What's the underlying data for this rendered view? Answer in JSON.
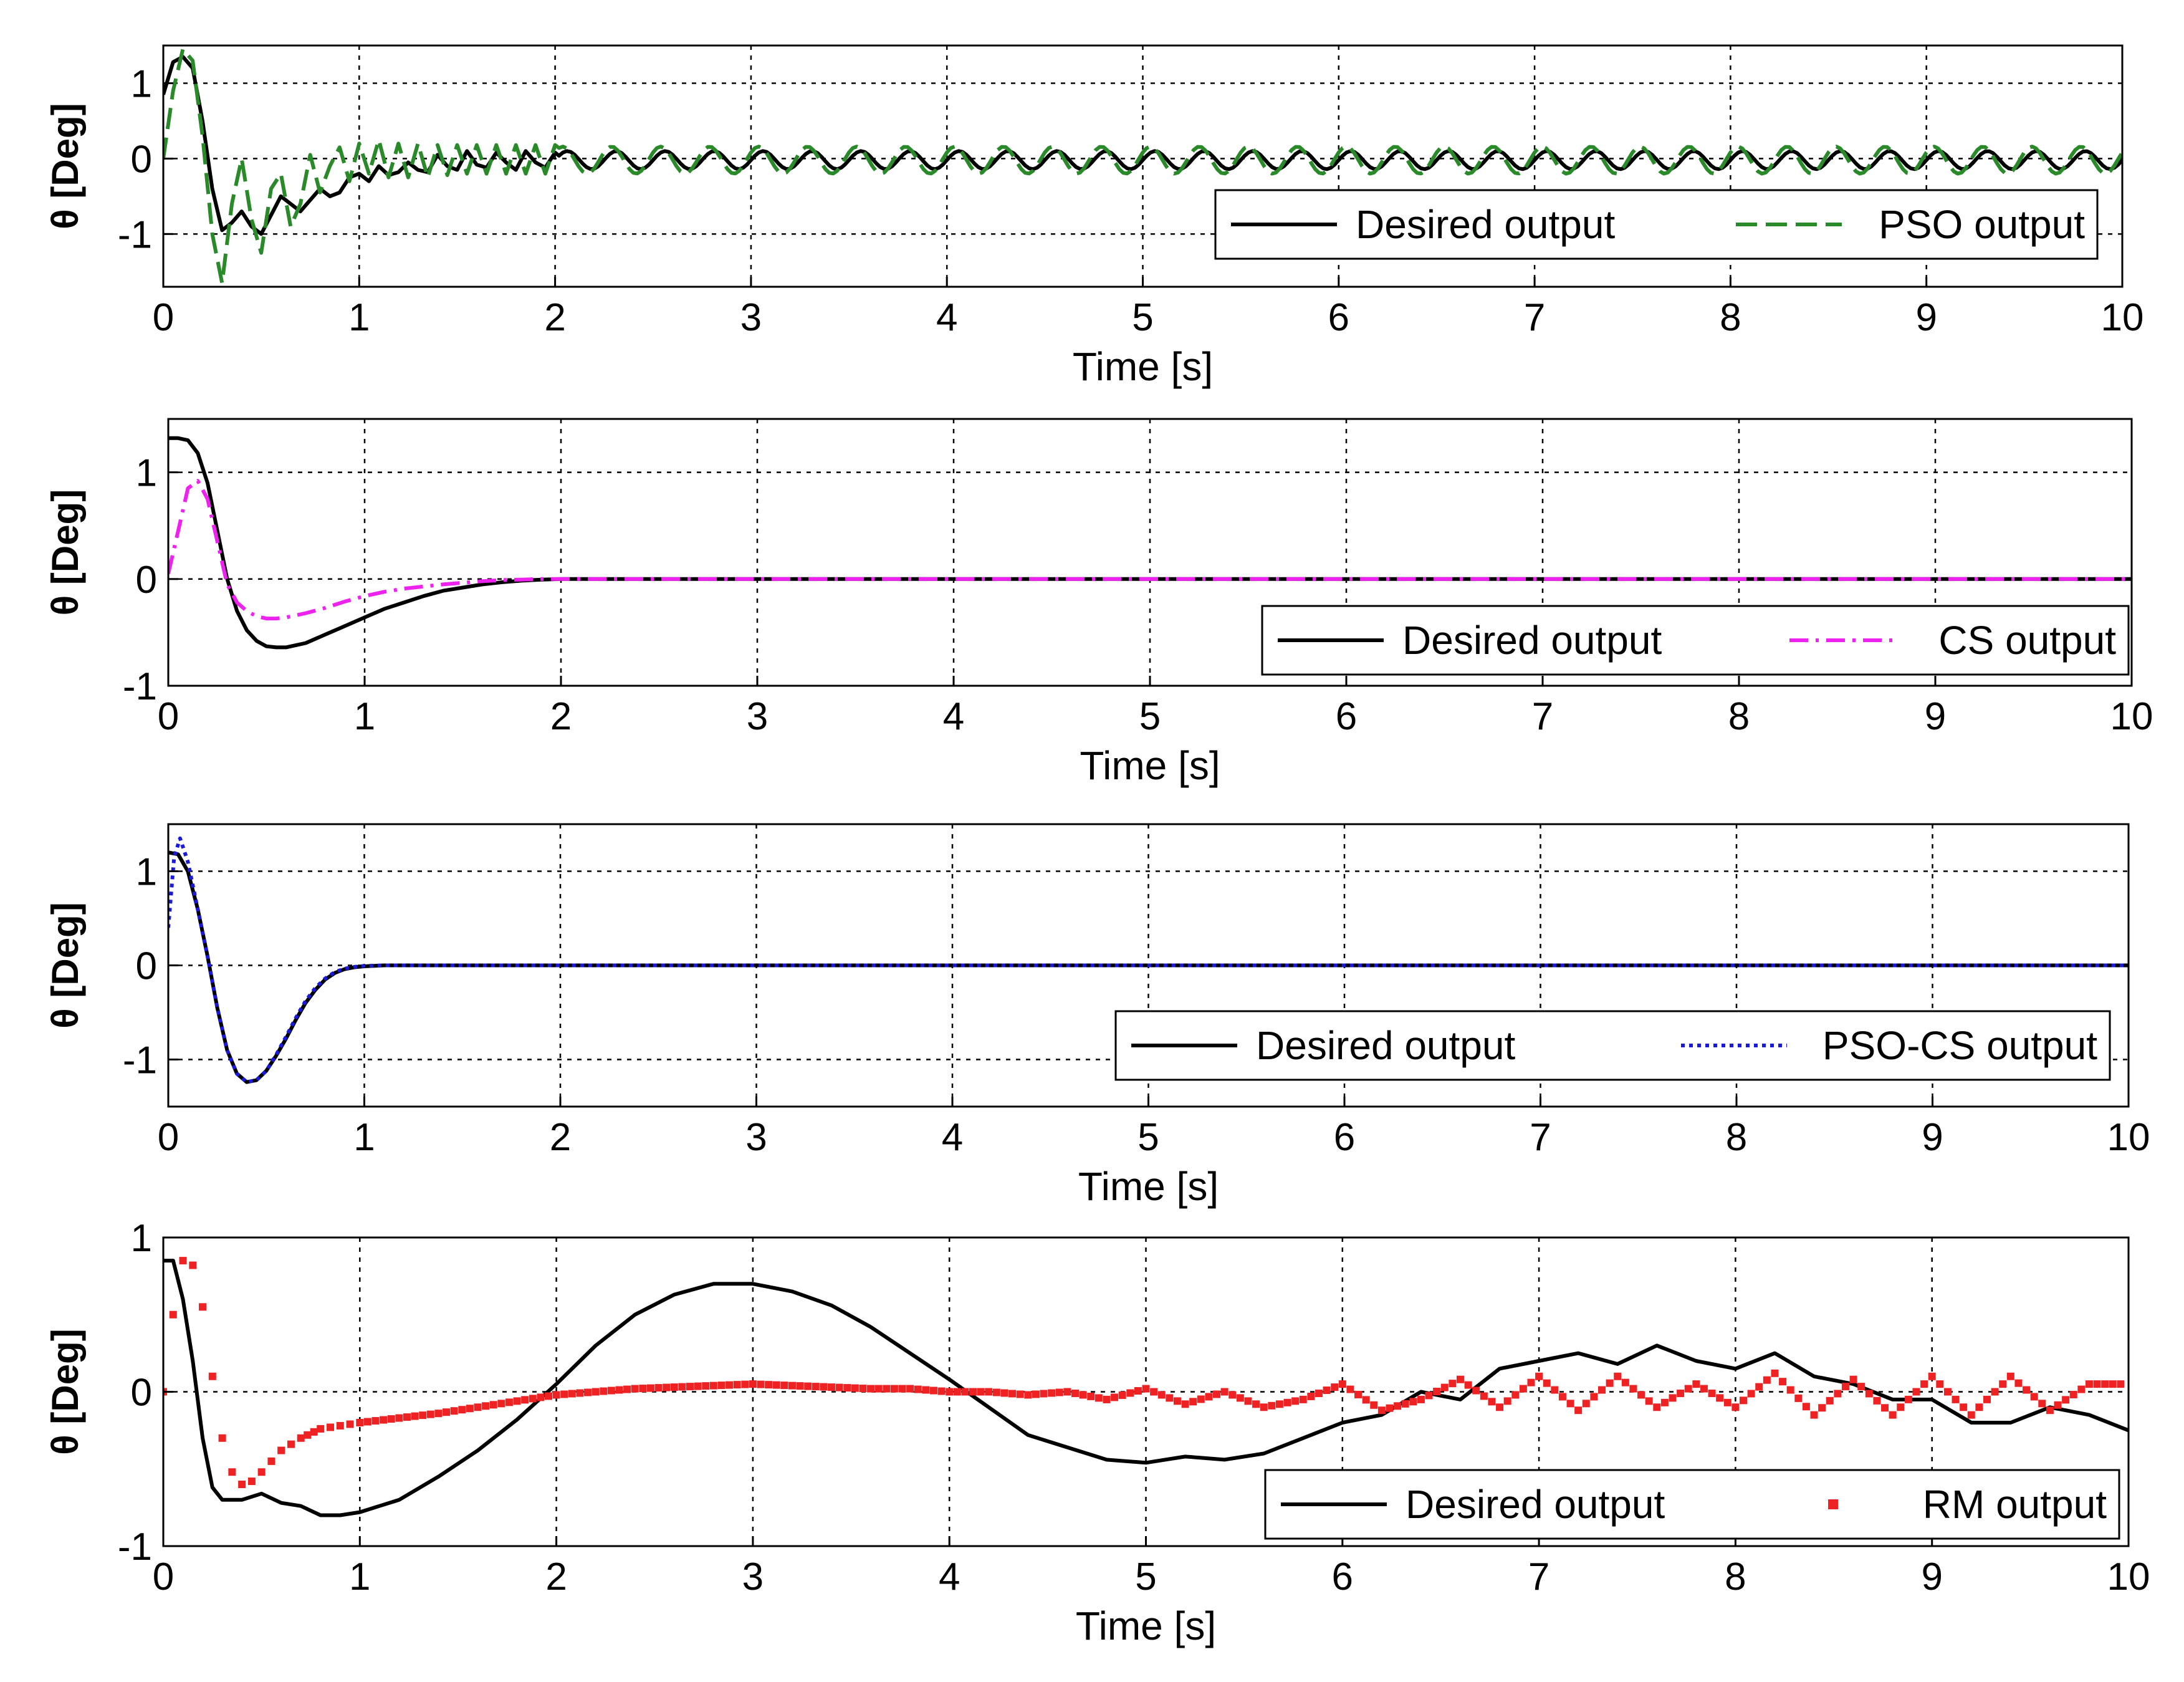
{
  "chart_data": [
    {
      "type": "line",
      "xlabel": "Time [s]",
      "ylabel": "θ [Deg]",
      "xlim": [
        0,
        10
      ],
      "ylim": [
        -1.7,
        1.5
      ],
      "xticks": [
        "0",
        "1",
        "2",
        "3",
        "4",
        "5",
        "6",
        "7",
        "8",
        "9",
        "10"
      ],
      "yticks": [
        {
          "value": 1,
          "label": "1"
        },
        {
          "value": 0,
          "label": "0"
        },
        {
          "value": -1,
          "label": "-1"
        }
      ],
      "grid": true,
      "legend_position": "bottom-right",
      "series": [
        {
          "name": "Desired output",
          "color": "#000000",
          "style": "solid",
          "x": [
            0.0,
            0.05,
            0.1,
            0.15,
            0.2,
            0.25,
            0.3,
            0.35,
            0.4,
            0.45,
            0.5,
            0.55,
            0.6,
            0.65,
            0.7,
            0.75,
            0.8,
            0.85,
            0.9,
            0.95,
            1.0,
            1.05,
            1.1,
            1.15,
            1.2,
            1.25,
            1.3,
            1.35,
            1.4,
            1.45,
            1.5,
            1.55,
            1.6,
            1.65,
            1.7,
            1.75,
            1.8,
            1.85,
            1.9,
            1.95,
            2.0
          ],
          "y": [
            0.85,
            1.28,
            1.35,
            1.2,
            0.5,
            -0.4,
            -0.95,
            -0.85,
            -0.7,
            -0.9,
            -1.0,
            -0.75,
            -0.5,
            -0.6,
            -0.7,
            -0.55,
            -0.4,
            -0.5,
            -0.45,
            -0.25,
            -0.2,
            -0.3,
            -0.1,
            -0.22,
            -0.18,
            -0.05,
            -0.15,
            -0.18,
            0.05,
            -0.1,
            -0.15,
            0.1,
            -0.08,
            -0.12,
            0.08,
            -0.05,
            -0.15,
            0.1,
            -0.05,
            -0.12,
            0.08
          ]
        },
        {
          "name": "PSO output",
          "color": "#2a8a2a",
          "style": "dashed",
          "x": [
            0.0,
            0.05,
            0.1,
            0.15,
            0.2,
            0.25,
            0.3,
            0.35,
            0.4,
            0.45,
            0.5,
            0.55,
            0.6,
            0.65,
            0.7,
            0.75,
            0.8,
            0.85,
            0.9,
            0.95,
            1.0,
            1.05,
            1.1,
            1.15,
            1.2,
            1.25,
            1.3,
            1.35,
            1.4,
            1.45,
            1.5,
            1.55,
            1.6,
            1.65,
            1.7,
            1.75,
            1.8,
            1.85,
            1.9,
            1.95,
            2.0
          ],
          "y": [
            0.0,
            0.9,
            1.45,
            1.3,
            0.3,
            -1.0,
            -1.65,
            -0.6,
            0.0,
            -0.8,
            -1.25,
            -0.4,
            -0.2,
            -0.9,
            -0.6,
            0.05,
            -0.45,
            -0.1,
            0.15,
            -0.3,
            0.2,
            -0.2,
            0.25,
            -0.25,
            0.2,
            -0.25,
            0.2,
            -0.25,
            0.18,
            -0.22,
            0.18,
            -0.2,
            0.18,
            -0.2,
            0.18,
            -0.2,
            0.18,
            -0.2,
            0.18,
            -0.2,
            0.18
          ]
        }
      ],
      "osc_from": 2.0,
      "osc_series": [
        {
          "series": 0,
          "amplitude": 0.12,
          "frequency": 4.0,
          "offset": -0.02
        },
        {
          "series": 1,
          "amplitude": 0.18,
          "frequency": 4.0,
          "offset": -0.02
        }
      ]
    },
    {
      "type": "line",
      "xlabel": "Time [s]",
      "ylabel": "θ [Deg]",
      "xlim": [
        0,
        10
      ],
      "ylim": [
        -1,
        1.5
      ],
      "xticks": [
        "0",
        "1",
        "2",
        "3",
        "4",
        "5",
        "6",
        "7",
        "8",
        "9",
        "10"
      ],
      "yticks": [
        {
          "value": 1,
          "label": "1"
        },
        {
          "value": 0,
          "label": "0"
        },
        {
          "value": -1,
          "label": "-1"
        }
      ],
      "grid": true,
      "legend_position": "bottom-right",
      "series": [
        {
          "name": "Desired output",
          "color": "#000000",
          "style": "solid",
          "x": [
            0.0,
            0.05,
            0.1,
            0.15,
            0.2,
            0.25,
            0.3,
            0.35,
            0.4,
            0.45,
            0.5,
            0.55,
            0.6,
            0.65,
            0.7,
            0.8,
            0.9,
            1.0,
            1.1,
            1.2,
            1.3,
            1.4,
            1.5,
            1.6,
            1.7,
            1.8,
            1.9,
            2.0,
            10.0
          ],
          "y": [
            1.32,
            1.32,
            1.3,
            1.18,
            0.9,
            0.45,
            0.0,
            -0.3,
            -0.48,
            -0.58,
            -0.63,
            -0.64,
            -0.64,
            -0.62,
            -0.6,
            -0.52,
            -0.44,
            -0.36,
            -0.28,
            -0.22,
            -0.16,
            -0.11,
            -0.08,
            -0.05,
            -0.03,
            -0.015,
            -0.005,
            0.0,
            0.0
          ]
        },
        {
          "name": "CS output",
          "color": "#ee22ee",
          "style": "dashdot",
          "x": [
            0.0,
            0.05,
            0.1,
            0.15,
            0.2,
            0.25,
            0.3,
            0.35,
            0.4,
            0.45,
            0.5,
            0.55,
            0.6,
            0.7,
            0.8,
            0.9,
            1.0,
            1.1,
            1.2,
            1.3,
            1.4,
            1.5,
            1.6,
            1.7,
            1.8,
            1.9,
            2.0,
            10.0
          ],
          "y": [
            0.05,
            0.45,
            0.85,
            0.92,
            0.75,
            0.35,
            -0.05,
            -0.22,
            -0.3,
            -0.35,
            -0.37,
            -0.37,
            -0.36,
            -0.32,
            -0.27,
            -0.21,
            -0.16,
            -0.12,
            -0.09,
            -0.07,
            -0.05,
            -0.035,
            -0.02,
            -0.01,
            -0.005,
            0.0,
            0.0,
            0.0
          ]
        }
      ]
    },
    {
      "type": "line",
      "xlabel": "Time [s]",
      "ylabel": "θ [Deg]",
      "xlim": [
        0,
        10
      ],
      "ylim": [
        -1.5,
        1.5
      ],
      "xticks": [
        "0",
        "1",
        "2",
        "3",
        "4",
        "5",
        "6",
        "7",
        "8",
        "9",
        "10"
      ],
      "yticks": [
        {
          "value": 1,
          "label": "1"
        },
        {
          "value": 0,
          "label": "0"
        },
        {
          "value": -1,
          "label": "-1"
        }
      ],
      "grid": true,
      "legend_position": "bottom-right",
      "series": [
        {
          "name": "Desired output",
          "color": "#000000",
          "style": "solid",
          "x": [
            0.0,
            0.05,
            0.1,
            0.15,
            0.2,
            0.25,
            0.3,
            0.35,
            0.4,
            0.45,
            0.5,
            0.55,
            0.6,
            0.65,
            0.7,
            0.75,
            0.8,
            0.85,
            0.9,
            0.95,
            1.0,
            1.1,
            1.2,
            1.3,
            10.0
          ],
          "y": [
            1.2,
            1.18,
            1.0,
            0.6,
            0.1,
            -0.45,
            -0.9,
            -1.15,
            -1.24,
            -1.22,
            -1.12,
            -0.96,
            -0.78,
            -0.58,
            -0.4,
            -0.26,
            -0.15,
            -0.08,
            -0.04,
            -0.02,
            -0.01,
            0.0,
            0.0,
            0.0,
            0.0
          ]
        },
        {
          "name": "PSO-CS output",
          "color": "#1a1ad8",
          "style": "dotted",
          "x": [
            0.0,
            0.03,
            0.06,
            0.1,
            0.15,
            0.2,
            0.25,
            0.3,
            0.35,
            0.4,
            0.45,
            0.5,
            0.55,
            0.6,
            0.65,
            0.7,
            0.75,
            0.8,
            0.85,
            0.9,
            0.95,
            1.0,
            1.1,
            1.2,
            1.3,
            10.0
          ],
          "y": [
            0.4,
            1.15,
            1.35,
            1.1,
            0.6,
            0.1,
            -0.45,
            -0.9,
            -1.15,
            -1.24,
            -1.22,
            -1.12,
            -0.95,
            -0.76,
            -0.56,
            -0.38,
            -0.24,
            -0.14,
            -0.07,
            -0.035,
            -0.015,
            -0.005,
            0.0,
            0.0,
            0.0,
            0.0
          ]
        }
      ]
    },
    {
      "type": "line",
      "xlabel": "Time [s]",
      "ylabel": "θ [Deg]",
      "xlim": [
        0,
        10
      ],
      "ylim": [
        -1,
        1
      ],
      "xticks": [
        "0",
        "1",
        "2",
        "3",
        "4",
        "5",
        "6",
        "7",
        "8",
        "9",
        "10"
      ],
      "yticks": [
        {
          "value": 1,
          "label": "1"
        },
        {
          "value": 0,
          "label": "0"
        },
        {
          "value": -1,
          "label": "-1"
        }
      ],
      "grid": true,
      "legend_position": "bottom-right",
      "series": [
        {
          "name": "Desired output",
          "color": "#000000",
          "style": "solid",
          "x": [
            0.0,
            0.05,
            0.1,
            0.15,
            0.2,
            0.25,
            0.3,
            0.4,
            0.5,
            0.6,
            0.7,
            0.8,
            0.9,
            1.0,
            1.1,
            1.2,
            1.4,
            1.6,
            1.8,
            2.0,
            2.2,
            2.4,
            2.6,
            2.8,
            3.0,
            3.2,
            3.4,
            3.6,
            3.8,
            4.0,
            4.2,
            4.4,
            4.6,
            4.8,
            5.0,
            5.2,
            5.4,
            5.6,
            5.8,
            6.0,
            6.2,
            6.4,
            6.6,
            6.8,
            7.0,
            7.2,
            7.4,
            7.6,
            7.8,
            8.0,
            8.2,
            8.4,
            8.6,
            8.8,
            9.0,
            9.2,
            9.4,
            9.6,
            9.8,
            10.0
          ],
          "y": [
            0.85,
            0.85,
            0.6,
            0.2,
            -0.3,
            -0.62,
            -0.7,
            -0.7,
            -0.66,
            -0.72,
            -0.74,
            -0.8,
            -0.8,
            -0.78,
            -0.74,
            -0.7,
            -0.55,
            -0.38,
            -0.18,
            0.05,
            0.3,
            0.5,
            0.63,
            0.7,
            0.7,
            0.65,
            0.56,
            0.42,
            0.25,
            0.08,
            -0.1,
            -0.28,
            -0.36,
            -0.44,
            -0.46,
            -0.42,
            -0.44,
            -0.4,
            -0.3,
            -0.2,
            -0.15,
            0.0,
            -0.05,
            0.15,
            0.2,
            0.25,
            0.18,
            0.3,
            0.2,
            0.15,
            0.25,
            0.1,
            0.05,
            -0.05,
            -0.05,
            -0.2,
            -0.2,
            -0.1,
            -0.15,
            -0.25
          ]
        },
        {
          "name": "RM output",
          "color": "#ee2222",
          "style": "markers",
          "x": [
            0.0,
            0.05,
            0.1,
            0.15,
            0.2,
            0.25,
            0.3,
            0.35,
            0.4,
            0.45,
            0.5,
            0.55,
            0.6,
            0.7,
            0.8,
            0.9,
            1.0,
            1.2,
            1.4,
            1.6,
            1.8,
            2.0,
            2.2,
            2.4,
            2.6,
            2.8,
            3.0,
            3.2,
            3.4,
            3.6,
            3.8,
            4.0,
            4.2,
            4.4,
            4.6,
            4.8,
            5.0,
            5.2,
            5.4,
            5.6,
            5.8,
            6.0,
            6.2,
            6.4,
            6.6,
            6.8,
            7.0,
            7.2,
            7.4,
            7.6,
            7.8,
            8.0,
            8.2,
            8.4,
            8.6,
            8.8,
            9.0,
            9.2,
            9.4,
            9.6,
            9.8,
            10.0
          ],
          "y": [
            0.0,
            0.5,
            0.85,
            0.82,
            0.55,
            0.1,
            -0.3,
            -0.52,
            -0.6,
            -0.58,
            -0.52,
            -0.45,
            -0.38,
            -0.3,
            -0.24,
            -0.22,
            -0.2,
            -0.17,
            -0.14,
            -0.1,
            -0.06,
            -0.02,
            0.0,
            0.02,
            0.03,
            0.04,
            0.05,
            0.04,
            0.03,
            0.02,
            0.02,
            0.0,
            0.0,
            -0.02,
            0.0,
            -0.05,
            0.02,
            -0.08,
            0.0,
            -0.1,
            -0.05,
            0.05,
            -0.12,
            -0.05,
            0.08,
            -0.1,
            0.1,
            -0.12,
            0.1,
            -0.1,
            0.05,
            -0.1,
            0.12,
            -0.15,
            0.08,
            -0.15,
            0.1,
            -0.15,
            0.1,
            -0.12,
            0.05,
            0.05
          ]
        }
      ]
    }
  ]
}
